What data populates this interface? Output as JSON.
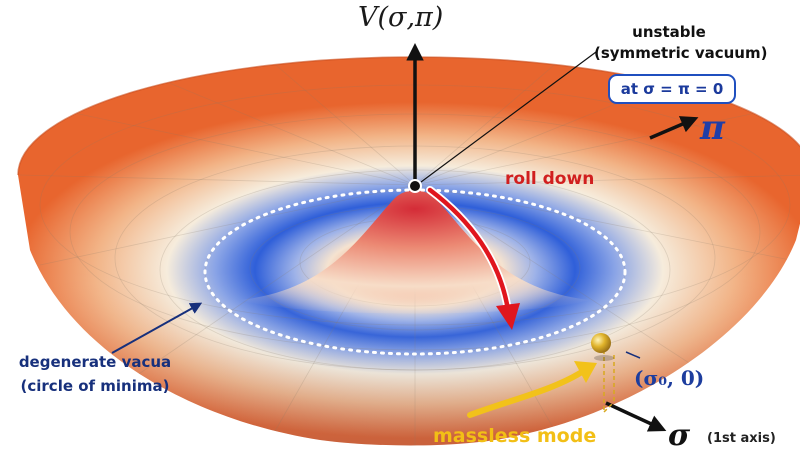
{
  "figure": {
    "axes": {
      "vertical_label": "V(σ,π)",
      "pi_label": "π",
      "sigma_label": "σ",
      "sigma_note": "(1st axis)"
    },
    "annotations": {
      "unstable_title": "unstable",
      "unstable_subtitle": "(symmetric vacuum)",
      "origin_condition": "at σ = π = 0",
      "roll_down": "roll down",
      "vacua_title": "degenerate vacua",
      "vacua_subtitle": "(circle of minima)",
      "massless_mode": "massless mode",
      "chosen_minimum": "(σ₀, 0)"
    },
    "colors": {
      "rim_orange": "#e8652e",
      "peak_red": "#d8323a",
      "trough_blue": "#2f5fd9",
      "roll_arrow_red": "#e0161e",
      "massless_yellow": "#f2c21a",
      "text_blue": "#1d3d9e",
      "axis_black": "#111111"
    }
  }
}
